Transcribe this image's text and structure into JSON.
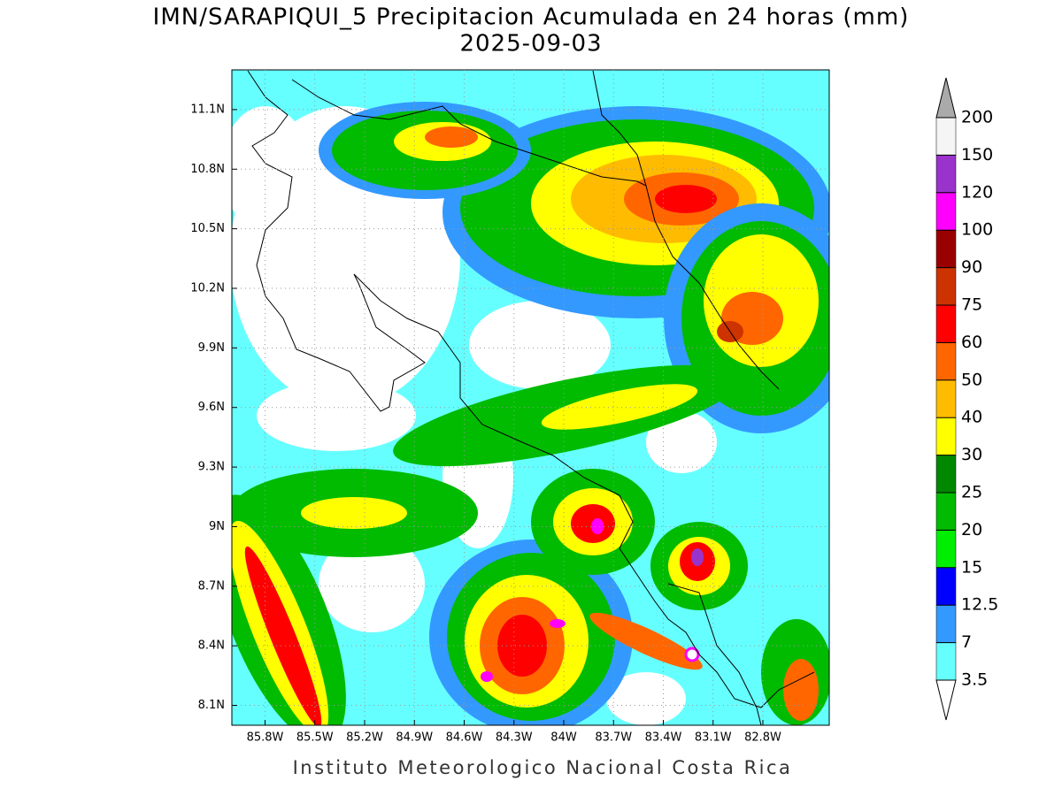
{
  "title": "IMN/SARAPIQUI_5 Precipitacion Acumulada en 24 horas (mm)",
  "subtitle": "2025-09-03",
  "map": {
    "type": "map",
    "xlim": [
      -86.0,
      -82.4
    ],
    "ylim": [
      8.0,
      11.3
    ],
    "grid": true,
    "xticks": [
      {
        "value": -85.8,
        "label": "85.8W"
      },
      {
        "value": -85.5,
        "label": "85.5W"
      },
      {
        "value": -85.2,
        "label": "85.2W"
      },
      {
        "value": -84.9,
        "label": "84.9W"
      },
      {
        "value": -84.6,
        "label": "84.6W"
      },
      {
        "value": -84.3,
        "label": "84.3W"
      },
      {
        "value": -84,
        "label": "84W"
      },
      {
        "value": -83.7,
        "label": "83.7W"
      },
      {
        "value": -83.4,
        "label": "83.4W"
      },
      {
        "value": -83.1,
        "label": "83.1W"
      },
      {
        "value": -82.8,
        "label": "82.8W"
      }
    ],
    "yticks": [
      {
        "value": 8.1,
        "label": "8.1N"
      },
      {
        "value": 8.4,
        "label": "8.4N"
      },
      {
        "value": 8.7,
        "label": "8.7N"
      },
      {
        "value": 9,
        "label": "9N"
      },
      {
        "value": 9.3,
        "label": "9.3N"
      },
      {
        "value": 9.6,
        "label": "9.6N"
      },
      {
        "value": 9.9,
        "label": "9.9N"
      },
      {
        "value": 10.2,
        "label": "10.2N"
      },
      {
        "value": 10.5,
        "label": "10.5N"
      },
      {
        "value": 10.8,
        "label": "10.8N"
      },
      {
        "value": 11.1,
        "label": "11.1N"
      }
    ]
  },
  "colorbar": {
    "levels": [
      3.5,
      7,
      12.5,
      15,
      20,
      25,
      30,
      40,
      50,
      60,
      75,
      90,
      100,
      120,
      150,
      200
    ],
    "colors": [
      "#66ffff",
      "#3399ff",
      "#0000ff",
      "#00ee00",
      "#00bb00",
      "#008800",
      "#ffff00",
      "#ffbb00",
      "#ff6600",
      "#ff0000",
      "#cc3300",
      "#990000",
      "#ff00ff",
      "#9933cc",
      "#f5f5f5"
    ],
    "under_color": "#ffffff",
    "over_color": "#aaaaaa"
  },
  "footer": "Instituto Meteorologico Nacional Costa Rica"
}
